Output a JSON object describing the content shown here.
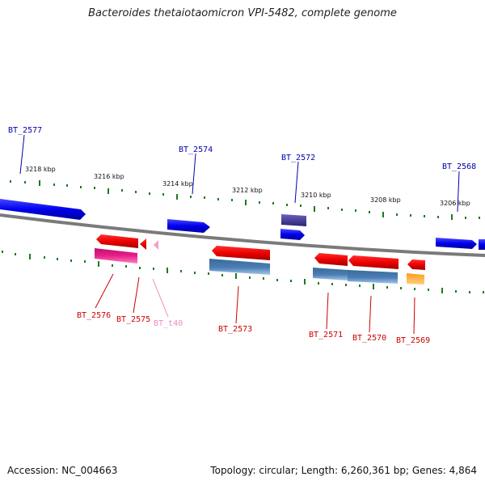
{
  "title": "Bacteroides thetaiotaomicron VPI-5482, complete genome",
  "accession": "Accession: NC_004663",
  "summary": "Topology: circular; Length: 6,260,361 bp; Genes: 4,864",
  "colors": {
    "forward_gene": "#0000ee",
    "forward_gene_dark": "#3a3090",
    "reverse_gene": "#ee0000",
    "reverse_cds": "#4a7eb5",
    "pink_gene": "#e8208a",
    "trna": "#f3a0c8",
    "orange_gene": "#ff8c00",
    "backbone": "#7a7a7a",
    "ticks": "#1e7a1e",
    "label_forward": "#0000aa",
    "label_reverse": "#cc0000",
    "label_trna": "#f08cc0"
  },
  "kbp_labels": [
    "3218 kbp",
    "3216 kbp",
    "3214 kbp",
    "3212 kbp",
    "3210 kbp",
    "3208 kbp",
    "3206 kbp"
  ],
  "forward_labels": [
    "BT_2577",
    "BT_2574",
    "BT_2572",
    "BT_2568"
  ],
  "reverse_labels": [
    "BT_2576",
    "BT_2575",
    "BT_t40",
    "BT_2573",
    "BT_2571",
    "BT_2570",
    "BT_2569"
  ]
}
